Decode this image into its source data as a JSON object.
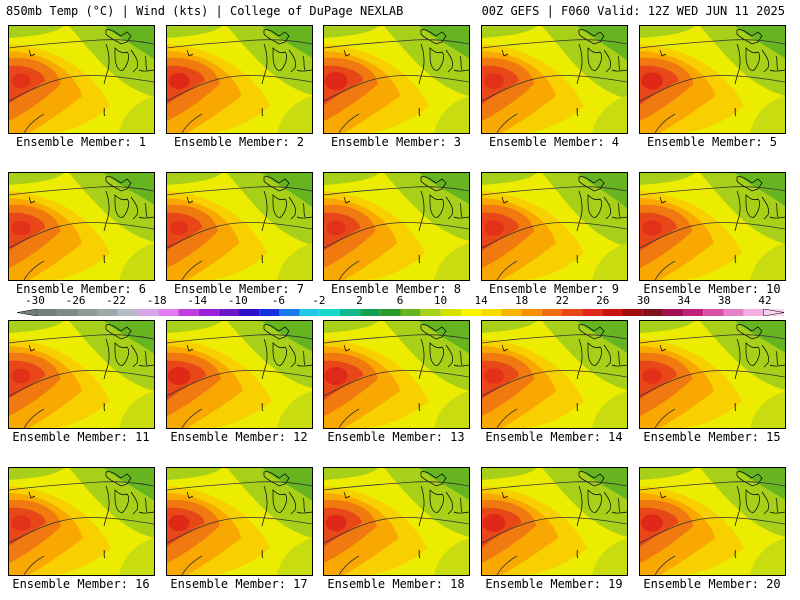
{
  "header": {
    "left": "850mb Temp (°C) | Wind (kts) | College of DuPage NEXLAB",
    "right": "00Z GEFS | F060 Valid: 12Z WED JUN 11 2025"
  },
  "members": [
    {
      "label": "Ensemble Member: 1",
      "hot": 0.55,
      "cool": 0.55
    },
    {
      "label": "Ensemble Member: 2",
      "hot": 0.65,
      "cool": 0.45
    },
    {
      "label": "Ensemble Member: 3",
      "hot": 0.75,
      "cool": 0.5
    },
    {
      "label": "Ensemble Member: 4",
      "hot": 0.6,
      "cool": 0.65
    },
    {
      "label": "Ensemble Member: 5",
      "hot": 0.7,
      "cool": 0.5
    },
    {
      "label": "Ensemble Member: 6",
      "hot": 0.55,
      "cool": 0.45
    },
    {
      "label": "Ensemble Member: 7",
      "hot": 0.5,
      "cool": 0.6
    },
    {
      "label": "Ensemble Member: 8",
      "hot": 0.55,
      "cool": 0.4
    },
    {
      "label": "Ensemble Member: 9",
      "hot": 0.6,
      "cool": 0.7
    },
    {
      "label": "Ensemble Member: 10",
      "hot": 0.6,
      "cool": 0.55
    },
    {
      "label": "Ensemble Member: 11",
      "hot": 0.55,
      "cool": 0.5
    },
    {
      "label": "Ensemble Member: 12",
      "hot": 0.75,
      "cool": 0.35
    },
    {
      "label": "Ensemble Member: 13",
      "hot": 0.75,
      "cool": 0.5
    },
    {
      "label": "Ensemble Member: 14",
      "hot": 0.6,
      "cool": 0.45
    },
    {
      "label": "Ensemble Member: 15",
      "hot": 0.6,
      "cool": 0.45
    },
    {
      "label": "Ensemble Member: 16",
      "hot": 0.6,
      "cool": 0.5
    },
    {
      "label": "Ensemble Member: 17",
      "hot": 0.65,
      "cool": 0.5
    },
    {
      "label": "Ensemble Member: 18",
      "hot": 0.65,
      "cool": 0.45
    },
    {
      "label": "Ensemble Member: 19",
      "hot": 0.75,
      "cool": 0.45
    },
    {
      "label": "Ensemble Member: 20",
      "hot": 0.7,
      "cool": 0.45
    }
  ],
  "scale": {
    "ticks": [
      "-30",
      "-26",
      "-22",
      "-18",
      "-14",
      "-10",
      "-6",
      "-2",
      "2",
      "6",
      "10",
      "14",
      "18",
      "22",
      "26",
      "30",
      "34",
      "38",
      "42"
    ],
    "colors": [
      "#6f7f7a",
      "#7e8c88",
      "#8e9998",
      "#9ea8a8",
      "#b3bcc4",
      "#d7a6e8",
      "#e07ef0",
      "#c23ce0",
      "#9a20d8",
      "#6a18c8",
      "#2a10c8",
      "#1430e0",
      "#1a7ae8",
      "#22c8e8",
      "#18d8c8",
      "#10b890",
      "#10a050",
      "#2a9a28",
      "#66b420",
      "#a8d018",
      "#d8e000",
      "#f8f400",
      "#f8dc00",
      "#f8b400",
      "#f89000",
      "#f06c10",
      "#e84818",
      "#e02818",
      "#c81410",
      "#a00c0c",
      "#80101a",
      "#a01050",
      "#c0207a",
      "#d850a8",
      "#e880c8",
      "#f4b0e0",
      "#f8d4ee"
    ]
  }
}
